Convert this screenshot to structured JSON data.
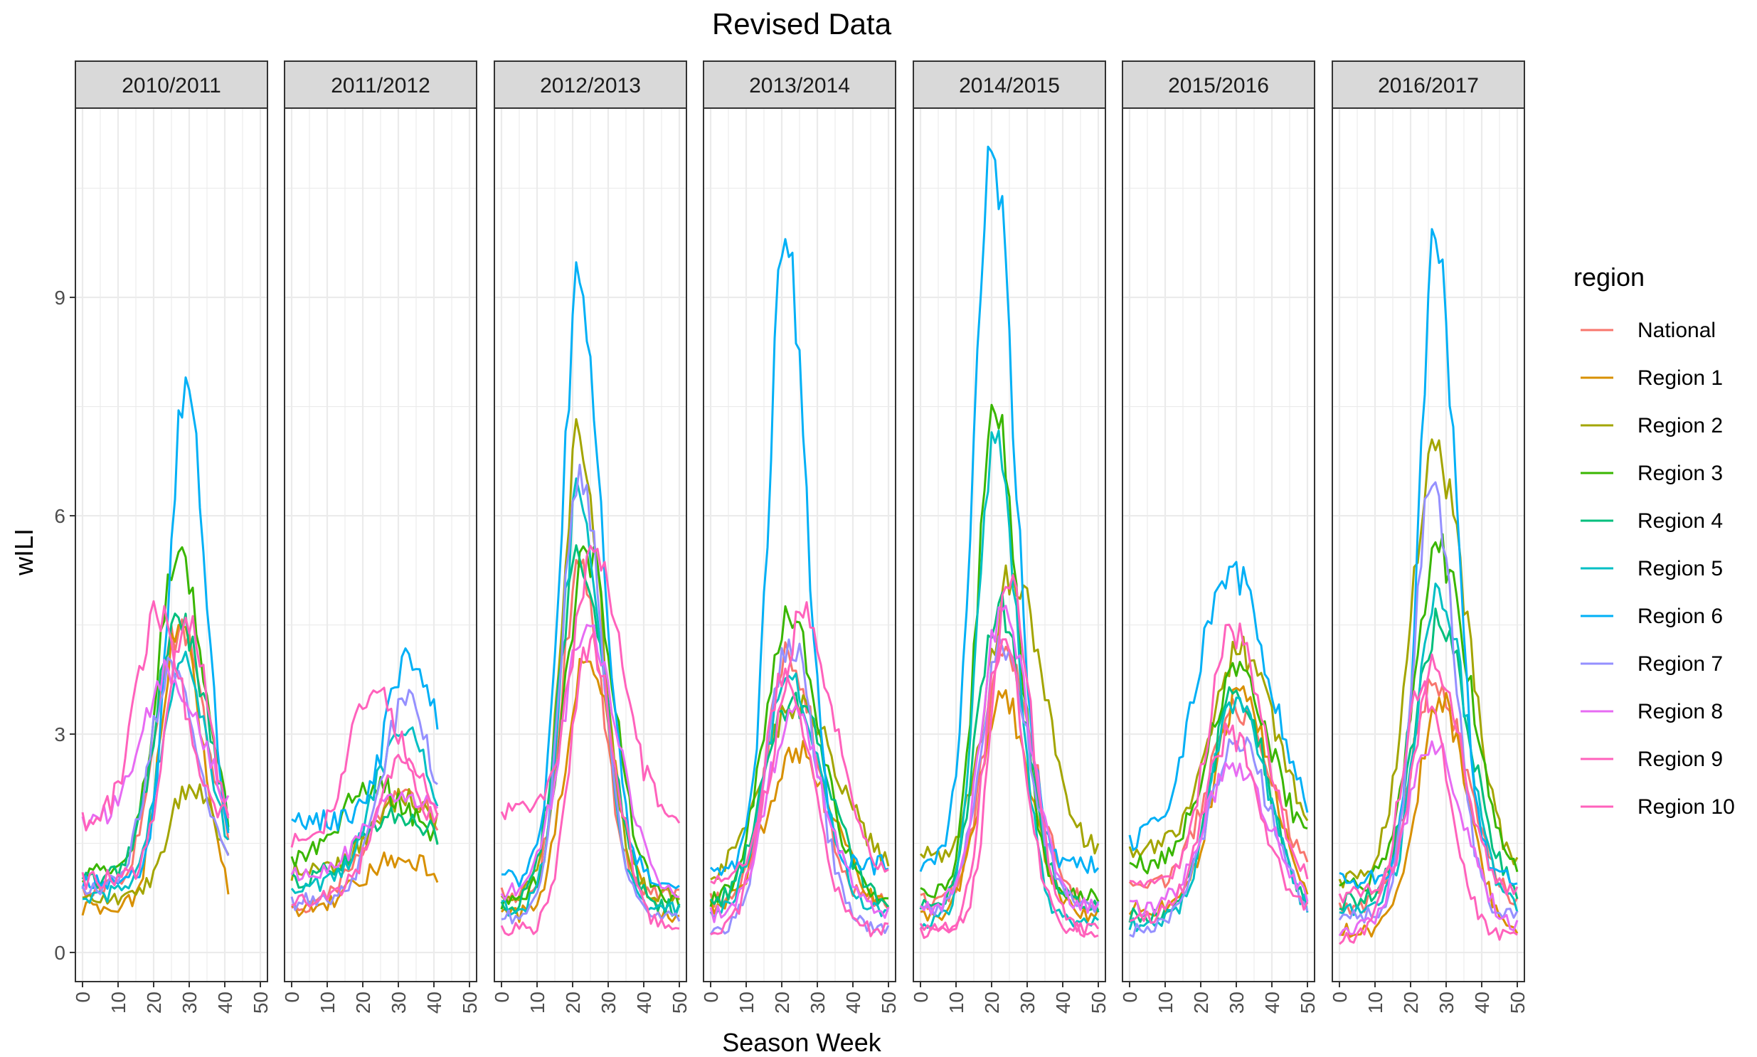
{
  "chart_data": {
    "type": "line",
    "title": "Revised Data",
    "xlabel": "Season Week",
    "ylabel": "wILI",
    "xlim": [
      -2,
      52
    ],
    "ylim": [
      -0.4,
      11.6
    ],
    "x_ticks": [
      0,
      10,
      20,
      30,
      40,
      50
    ],
    "y_ticks": [
      0,
      3,
      6,
      9
    ],
    "grid": true,
    "legend_title": "region",
    "legend_position": "right",
    "series": [
      {
        "name": "National",
        "color": "#F8766D"
      },
      {
        "name": "Region 1",
        "color": "#D89000"
      },
      {
        "name": "Region 2",
        "color": "#A3A500"
      },
      {
        "name": "Region 3",
        "color": "#39B600"
      },
      {
        "name": "Region 4",
        "color": "#00BF7D"
      },
      {
        "name": "Region 5",
        "color": "#00BFC4"
      },
      {
        "name": "Region 6",
        "color": "#00B0F6"
      },
      {
        "name": "Region 7",
        "color": "#9590FF"
      },
      {
        "name": "Region 8",
        "color": "#E76BF3"
      },
      {
        "name": "Region 9",
        "color": "#FF62BC"
      },
      {
        "name": "Region 10",
        "color": "#FF62BC"
      }
    ],
    "panels": [
      {
        "label": "2010/2011",
        "x_start": 0,
        "x_end": 41,
        "series_peaks": [
          {
            "region": "National",
            "peak_week": 27,
            "peak": 4.4,
            "base": 0.85,
            "spread": 6.5
          },
          {
            "region": "Region 1",
            "peak_week": 27,
            "peak": 4.5,
            "base": 0.6,
            "spread": 5
          },
          {
            "region": "Region 2",
            "peak_week": 30,
            "peak": 2.3,
            "base": 0.7,
            "spread": 6
          },
          {
            "region": "Region 3",
            "peak_week": 27,
            "peak": 5.5,
            "base": 1.1,
            "spread": 6
          },
          {
            "region": "Region 4",
            "peak_week": 27,
            "peak": 4.6,
            "base": 1.0,
            "spread": 6.5
          },
          {
            "region": "Region 5",
            "peak_week": 28,
            "peak": 4.0,
            "base": 0.8,
            "spread": 6
          },
          {
            "region": "Region 6",
            "peak_week": 29,
            "peak": 7.9,
            "base": 1.0,
            "spread": 4.5
          },
          {
            "region": "Region 7",
            "peak_week": 25,
            "peak": 4.0,
            "base": 0.9,
            "spread": 6
          },
          {
            "region": "Region 8",
            "peak_week": 24,
            "peak": 3.9,
            "base": 1.8,
            "spread": 7
          },
          {
            "region": "Region 9",
            "peak_week": 21,
            "peak": 4.6,
            "base": 1.8,
            "spread": 6
          },
          {
            "region": "Region 10",
            "peak_week": 29,
            "peak": 4.6,
            "base": 1.0,
            "spread": 5.5
          }
        ]
      },
      {
        "label": "2011/2012",
        "x_start": 0,
        "x_end": 41,
        "series_peaks": [
          {
            "region": "National",
            "peak_week": 31,
            "peak": 2.2,
            "base": 0.6,
            "spread": 10
          },
          {
            "region": "Region 1",
            "peak_week": 30,
            "peak": 1.3,
            "base": 0.6,
            "spread": 10
          },
          {
            "region": "Region 2",
            "peak_week": 31,
            "peak": 2.1,
            "base": 1.1,
            "spread": 9
          },
          {
            "region": "Region 3",
            "peak_week": 23,
            "peak": 2.3,
            "base": 1.2,
            "spread": 9
          },
          {
            "region": "Region 4",
            "peak_week": 30,
            "peak": 1.9,
            "base": 1.0,
            "spread": 10
          },
          {
            "region": "Region 5",
            "peak_week": 31,
            "peak": 3.0,
            "base": 0.9,
            "spread": 8
          },
          {
            "region": "Region 6",
            "peak_week": 33,
            "peak": 4.1,
            "base": 1.8,
            "spread": 6
          },
          {
            "region": "Region 7",
            "peak_week": 32,
            "peak": 3.4,
            "base": 0.7,
            "spread": 7
          },
          {
            "region": "Region 8",
            "peak_week": 31,
            "peak": 2.2,
            "base": 1.1,
            "spread": 9
          },
          {
            "region": "Region 9",
            "peak_week": 23,
            "peak": 3.6,
            "base": 1.5,
            "spread": 7
          },
          {
            "region": "Region 10",
            "peak_week": 32,
            "peak": 2.6,
            "base": 0.7,
            "spread": 8
          }
        ]
      },
      {
        "label": "2012/2013",
        "x_start": 0,
        "x_end": 50,
        "series_peaks": [
          {
            "region": "National",
            "peak_week": 22,
            "peak": 5.3,
            "base": 0.8,
            "spread": 5
          },
          {
            "region": "Region 1",
            "peak_week": 24,
            "peak": 4.0,
            "base": 0.5,
            "spread": 6
          },
          {
            "region": "Region 2",
            "peak_week": 22,
            "peak": 7.1,
            "base": 0.8,
            "spread": 5
          },
          {
            "region": "Region 3",
            "peak_week": 24,
            "peak": 5.5,
            "base": 0.7,
            "spread": 6
          },
          {
            "region": "Region 4",
            "peak_week": 22,
            "peak": 5.4,
            "base": 0.6,
            "spread": 6
          },
          {
            "region": "Region 5",
            "peak_week": 22,
            "peak": 6.3,
            "base": 0.6,
            "spread": 5
          },
          {
            "region": "Region 6",
            "peak_week": 22,
            "peak": 9.2,
            "base": 1.0,
            "spread": 5
          },
          {
            "region": "Region 7",
            "peak_week": 22,
            "peak": 6.7,
            "base": 0.5,
            "spread": 5
          },
          {
            "region": "Region 8",
            "peak_week": 24,
            "peak": 4.5,
            "base": 0.8,
            "spread": 7
          },
          {
            "region": "Region 9",
            "peak_week": 26,
            "peak": 5.5,
            "base": 1.9,
            "spread": 6
          },
          {
            "region": "Region 10",
            "peak_week": 25,
            "peak": 4.3,
            "base": 0.3,
            "spread": 5.5
          }
        ]
      },
      {
        "label": "2013/2014",
        "x_start": 0,
        "x_end": 50,
        "series_peaks": [
          {
            "region": "National",
            "peak_week": 22,
            "peak": 4.1,
            "base": 0.7,
            "spread": 6
          },
          {
            "region": "Region 1",
            "peak_week": 24,
            "peak": 2.8,
            "base": 0.6,
            "spread": 8
          },
          {
            "region": "Region 2",
            "peak_week": 24,
            "peak": 3.4,
            "base": 0.9,
            "spread": 10
          },
          {
            "region": "Region 3",
            "peak_week": 22,
            "peak": 4.6,
            "base": 0.7,
            "spread": 7
          },
          {
            "region": "Region 4",
            "peak_week": 23,
            "peak": 3.5,
            "base": 0.6,
            "spread": 8
          },
          {
            "region": "Region 5",
            "peak_week": 22,
            "peak": 3.8,
            "base": 0.5,
            "spread": 7
          },
          {
            "region": "Region 6",
            "peak_week": 21,
            "peak": 9.8,
            "base": 1.2,
            "spread": 4.5
          },
          {
            "region": "Region 7",
            "peak_week": 22,
            "peak": 4.3,
            "base": 0.3,
            "spread": 6
          },
          {
            "region": "Region 8",
            "peak_week": 23,
            "peak": 3.3,
            "base": 0.5,
            "spread": 7
          },
          {
            "region": "Region 9",
            "peak_week": 26,
            "peak": 4.6,
            "base": 1.0,
            "spread": 7
          },
          {
            "region": "Region 10",
            "peak_week": 21,
            "peak": 3.9,
            "base": 0.3,
            "spread": 6
          }
        ]
      },
      {
        "label": "2014/2015",
        "x_start": 0,
        "x_end": 50,
        "series_peaks": [
          {
            "region": "National",
            "peak_week": 24,
            "peak": 4.2,
            "base": 0.7,
            "spread": 6
          },
          {
            "region": "Region 1",
            "peak_week": 23,
            "peak": 3.5,
            "base": 0.5,
            "spread": 6
          },
          {
            "region": "Region 2",
            "peak_week": 26,
            "peak": 5.2,
            "base": 1.3,
            "spread": 7
          },
          {
            "region": "Region 3",
            "peak_week": 21,
            "peak": 7.4,
            "base": 0.8,
            "spread": 5
          },
          {
            "region": "Region 4",
            "peak_week": 22,
            "peak": 4.8,
            "base": 0.6,
            "spread": 6
          },
          {
            "region": "Region 5",
            "peak_week": 21,
            "peak": 7.0,
            "base": 0.4,
            "spread": 5
          },
          {
            "region": "Region 6",
            "peak_week": 20,
            "peak": 11.0,
            "base": 1.2,
            "spread": 5
          },
          {
            "region": "Region 7",
            "peak_week": 23,
            "peak": 4.2,
            "base": 0.6,
            "spread": 6
          },
          {
            "region": "Region 8",
            "peak_week": 23,
            "peak": 4.7,
            "base": 0.6,
            "spread": 6
          },
          {
            "region": "Region 9",
            "peak_week": 25,
            "peak": 5.0,
            "base": 0.3,
            "spread": 5
          },
          {
            "region": "Region 10",
            "peak_week": 23,
            "peak": 4.3,
            "base": 0.3,
            "spread": 5
          }
        ]
      },
      {
        "label": "2015/2016",
        "x_start": 0,
        "x_end": 50,
        "series_peaks": [
          {
            "region": "National",
            "peak_week": 30,
            "peak": 3.3,
            "base": 0.9,
            "spread": 8
          },
          {
            "region": "Region 1",
            "peak_week": 31,
            "peak": 3.6,
            "base": 0.6,
            "spread": 7
          },
          {
            "region": "Region 2",
            "peak_week": 31,
            "peak": 4.1,
            "base": 1.4,
            "spread": 8
          },
          {
            "region": "Region 3",
            "peak_week": 30,
            "peak": 3.8,
            "base": 1.2,
            "spread": 8
          },
          {
            "region": "Region 4",
            "peak_week": 30,
            "peak": 3.6,
            "base": 0.5,
            "spread": 7
          },
          {
            "region": "Region 5",
            "peak_week": 30,
            "peak": 3.5,
            "base": 0.4,
            "spread": 7
          },
          {
            "region": "Region 6",
            "peak_week": 28,
            "peak": 5.3,
            "base": 1.5,
            "spread": 9
          },
          {
            "region": "Region 7",
            "peak_week": 30,
            "peak": 2.9,
            "base": 0.3,
            "spread": 8
          },
          {
            "region": "Region 8",
            "peak_week": 29,
            "peak": 2.6,
            "base": 0.6,
            "spread": 8
          },
          {
            "region": "Region 9",
            "peak_week": 29,
            "peak": 4.4,
            "base": 0.9,
            "spread": 7
          },
          {
            "region": "Region 10",
            "peak_week": 28,
            "peak": 3.0,
            "base": 0.5,
            "spread": 7
          }
        ]
      },
      {
        "label": "2016/2017",
        "x_start": 0,
        "x_end": 50,
        "series_peaks": [
          {
            "region": "National",
            "peak_week": 27,
            "peak": 3.7,
            "base": 0.6,
            "spread": 7
          },
          {
            "region": "Region 1",
            "peak_week": 28,
            "peak": 3.5,
            "base": 0.3,
            "spread": 6
          },
          {
            "region": "Region 2",
            "peak_week": 27,
            "peak": 6.9,
            "base": 1.0,
            "spread": 7
          },
          {
            "region": "Region 3",
            "peak_week": 28,
            "peak": 5.5,
            "base": 0.9,
            "spread": 7
          },
          {
            "region": "Region 4",
            "peak_week": 28,
            "peak": 4.5,
            "base": 0.7,
            "spread": 7
          },
          {
            "region": "Region 5",
            "peak_week": 28,
            "peak": 5.0,
            "base": 0.6,
            "spread": 6
          },
          {
            "region": "Region 6",
            "peak_week": 27,
            "peak": 9.8,
            "base": 1.0,
            "spread": 4.5
          },
          {
            "region": "Region 7",
            "peak_week": 26,
            "peak": 6.4,
            "base": 0.5,
            "spread": 5
          },
          {
            "region": "Region 8",
            "peak_week": 26,
            "peak": 2.9,
            "base": 0.3,
            "spread": 7
          },
          {
            "region": "Region 9",
            "peak_week": 27,
            "peak": 3.9,
            "base": 0.8,
            "spread": 6
          },
          {
            "region": "Region 10",
            "peak_week": 23,
            "peak": 3.6,
            "base": 0.2,
            "spread": 6
          }
        ]
      }
    ]
  }
}
